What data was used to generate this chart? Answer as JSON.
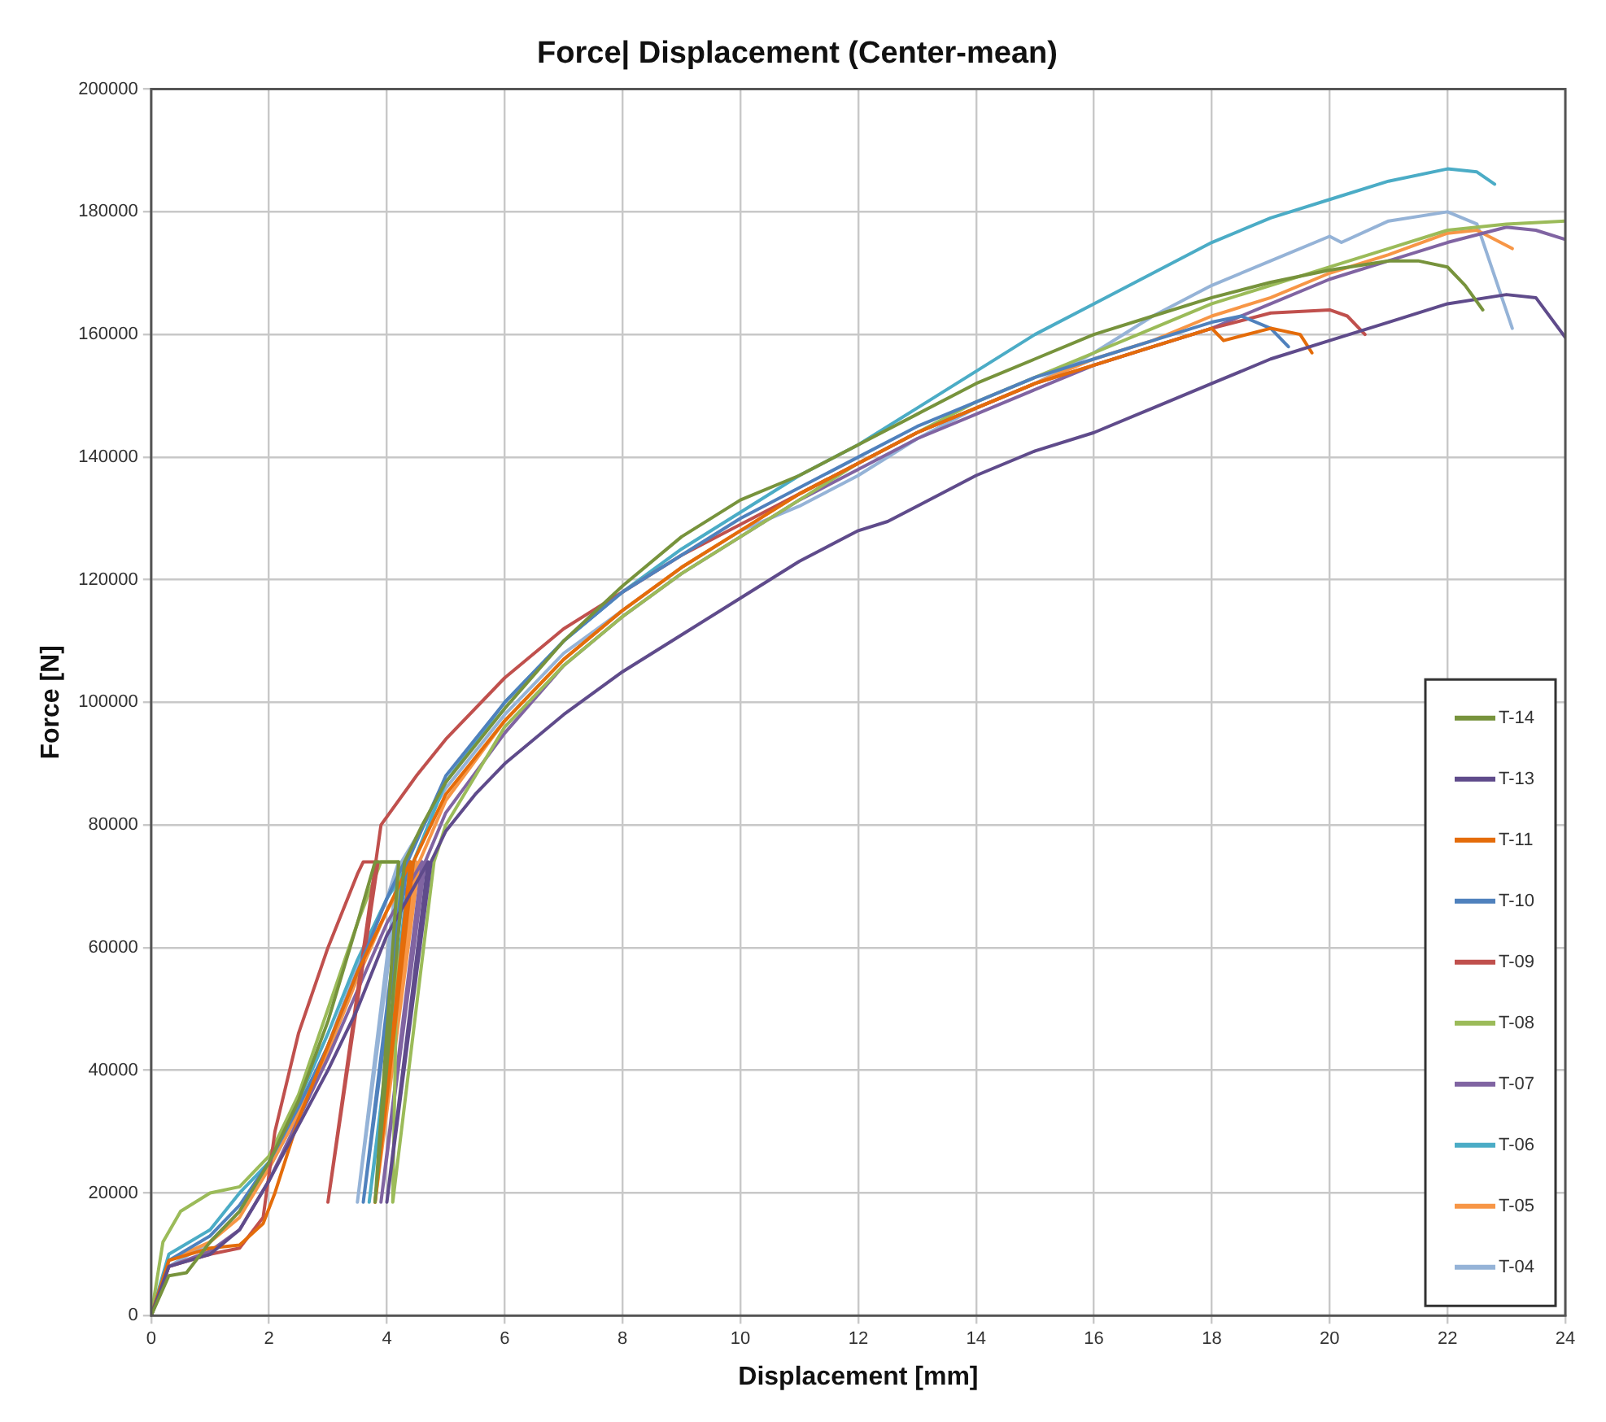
{
  "chart_data": {
    "type": "line",
    "title": "Force| Displacement (Center-mean)",
    "xlabel": "Displacement [mm]",
    "ylabel": "Force [N]",
    "xlim": [
      0,
      24
    ],
    "xticks": [
      0,
      2,
      4,
      6,
      8,
      10,
      12,
      14,
      16,
      18,
      20,
      22,
      24
    ],
    "ylim": [
      0,
      200000
    ],
    "yticks": [
      0,
      20000,
      40000,
      60000,
      80000,
      100000,
      120000,
      140000,
      160000,
      180000,
      200000
    ],
    "grid": true,
    "legend": "bottom right",
    "marker": "none",
    "line_style": "solid",
    "series": [
      {
        "name": "T-14",
        "color": "#77933c",
        "x": [
          0,
          0.3,
          0.6,
          1,
          1.5,
          2,
          2.5,
          3,
          3.5,
          3.8,
          4.2,
          3.8,
          4.3,
          4.6,
          5,
          6,
          7,
          8,
          9,
          10,
          11,
          12,
          13,
          14,
          15,
          16,
          17,
          18,
          19,
          20,
          21,
          21.5,
          22,
          22.3,
          22.6
        ],
        "values": [
          0,
          6500,
          7000,
          12000,
          17000,
          25000,
          35000,
          48000,
          64000,
          74000,
          74000,
          18500,
          74000,
          80000,
          87000,
          99000,
          110000,
          119000,
          127000,
          133000,
          137000,
          142000,
          147000,
          152000,
          156000,
          160000,
          163000,
          166000,
          168500,
          170500,
          172000,
          172000,
          171000,
          168000,
          164000
        ]
      },
      {
        "name": "T-13",
        "color": "#5f4b8b",
        "x": [
          0,
          0.3,
          1,
          1.5,
          2,
          2.5,
          3,
          3.5,
          4,
          4.7,
          4.0,
          4.75,
          5,
          5.5,
          6,
          7,
          8,
          9,
          10,
          11,
          12,
          12.5,
          13,
          14,
          15,
          16,
          17,
          18,
          19,
          20,
          21,
          22,
          23,
          23.5,
          24
        ],
        "values": [
          0,
          8000,
          10000,
          14000,
          22000,
          31000,
          40000,
          50000,
          62000,
          74000,
          18500,
          74000,
          79000,
          85000,
          90000,
          98000,
          105000,
          111000,
          117000,
          123000,
          128000,
          129500,
          132000,
          137000,
          141000,
          144000,
          148000,
          152000,
          156000,
          159000,
          162000,
          165000,
          166500,
          166000,
          159500
        ]
      },
      {
        "name": "T-11",
        "color": "#e46c0a",
        "x": [
          0,
          0.3,
          1,
          1.5,
          1.9,
          2.1,
          2.5,
          3,
          3.5,
          4,
          4.4,
          3.8,
          4.45,
          5,
          6,
          7,
          8,
          9,
          10,
          11,
          12,
          13,
          14,
          15,
          16,
          17,
          18,
          18.2,
          19,
          19.5,
          19.7
        ],
        "values": [
          0,
          9000,
          11000,
          11500,
          15000,
          20000,
          32000,
          44000,
          56000,
          66000,
          74000,
          18500,
          74000,
          85000,
          97000,
          107000,
          115000,
          122000,
          128000,
          134000,
          139000,
          144000,
          148000,
          152000,
          155000,
          158000,
          161000,
          159000,
          161000,
          160000,
          157000
        ]
      },
      {
        "name": "T-10",
        "color": "#4f81bd",
        "x": [
          0,
          0.3,
          1,
          1.5,
          2,
          2.5,
          3,
          3.5,
          4,
          4.3,
          3.6,
          4.35,
          5,
          6,
          7,
          8,
          9,
          10,
          11,
          12,
          13,
          14,
          15,
          16,
          17,
          18,
          18.5,
          19,
          19.3
        ],
        "values": [
          0,
          9000,
          13000,
          18000,
          25000,
          34000,
          44000,
          56000,
          68000,
          74000,
          18500,
          74000,
          88000,
          100000,
          110000,
          118000,
          124000,
          130000,
          135000,
          140000,
          145000,
          149000,
          153000,
          156000,
          159000,
          162000,
          163000,
          161000,
          158000
        ]
      },
      {
        "name": "T-09",
        "color": "#c0504d",
        "x": [
          0,
          0.3,
          1,
          1.5,
          1.9,
          2.1,
          2.5,
          3,
          3.5,
          3.6,
          3.85,
          3.0,
          3.9,
          4.5,
          5,
          6,
          7,
          8,
          9,
          10,
          11,
          12,
          13,
          14,
          15,
          16,
          17,
          18,
          19,
          20,
          20.3,
          20.6
        ],
        "values": [
          0,
          8000,
          10000,
          11000,
          16000,
          30000,
          46000,
          60000,
          72000,
          74000,
          74000,
          18500,
          80000,
          88000,
          94000,
          104000,
          112000,
          118000,
          124000,
          129000,
          134000,
          139000,
          144000,
          148000,
          152000,
          155000,
          158000,
          161000,
          163500,
          164000,
          163000,
          160000
        ]
      },
      {
        "name": "T-08",
        "color": "#9bbb59",
        "x": [
          0,
          0.2,
          0.5,
          1,
          1.5,
          2,
          2.5,
          3,
          3.5,
          3.9,
          4.2,
          4.1,
          4.8,
          5,
          6,
          7,
          8,
          9,
          10,
          11,
          12,
          13,
          14,
          15,
          16,
          17,
          18,
          19,
          20,
          21,
          22,
          23,
          24
        ],
        "values": [
          0,
          12000,
          17000,
          20000,
          21000,
          26000,
          36000,
          50000,
          64000,
          74000,
          74000,
          18500,
          74000,
          80000,
          96000,
          106000,
          114000,
          121000,
          127000,
          133000,
          139000,
          144000,
          149000,
          153000,
          157000,
          161000,
          165000,
          168000,
          171000,
          174000,
          177000,
          178000,
          178500
        ]
      },
      {
        "name": "T-07",
        "color": "#8064a2",
        "x": [
          0,
          0.3,
          1,
          1.5,
          2,
          2.5,
          3,
          3.5,
          4,
          4.6,
          3.9,
          4.65,
          5,
          6,
          7,
          8,
          9,
          10,
          11,
          12,
          13,
          14,
          15,
          16,
          17,
          18,
          19,
          20,
          21,
          22,
          23,
          23.5,
          24
        ],
        "values": [
          0,
          8000,
          10500,
          14000,
          22000,
          32000,
          42000,
          53000,
          64000,
          74000,
          18500,
          74000,
          82000,
          95000,
          106000,
          114000,
          121000,
          127000,
          133000,
          138000,
          143000,
          147000,
          151000,
          155000,
          158000,
          161000,
          165000,
          169000,
          172000,
          175000,
          177500,
          177000,
          175500
        ]
      },
      {
        "name": "T-06",
        "color": "#4bacc6",
        "x": [
          0,
          0.3,
          1,
          1.5,
          2,
          2.5,
          3,
          3.5,
          4,
          4.4,
          3.7,
          4.45,
          5,
          6,
          7,
          8,
          9,
          10,
          11,
          12,
          13,
          14,
          15,
          16,
          17,
          18,
          19,
          20,
          21,
          22,
          22.5,
          22.8
        ],
        "values": [
          0,
          10000,
          14000,
          20000,
          25000,
          35000,
          46000,
          58000,
          68000,
          74000,
          18500,
          74000,
          87000,
          100000,
          110000,
          118000,
          125000,
          131000,
          137000,
          142000,
          148000,
          154000,
          160000,
          165000,
          170000,
          175000,
          179000,
          182000,
          185000,
          187000,
          186500,
          184500
        ]
      },
      {
        "name": "T-05",
        "color": "#f79646",
        "x": [
          0,
          0.3,
          1,
          1.5,
          2,
          2.5,
          3,
          3.5,
          4,
          4.5,
          3.8,
          4.55,
          5,
          6,
          7,
          8,
          9,
          10,
          11,
          12,
          13,
          14,
          15,
          16,
          17,
          18,
          19,
          20,
          21,
          22,
          22.5,
          23.1
        ],
        "values": [
          0,
          9000,
          12000,
          16000,
          24000,
          33000,
          43000,
          55000,
          66000,
          74000,
          18500,
          74000,
          84000,
          97000,
          107000,
          115000,
          122000,
          128000,
          134000,
          139000,
          144000,
          148000,
          152000,
          156000,
          159000,
          163000,
          166000,
          170000,
          173000,
          176500,
          177000,
          174000
        ]
      },
      {
        "name": "T-04",
        "color": "#95b3d7",
        "x": [
          0,
          0.3,
          1,
          1.5,
          2,
          2.5,
          3,
          3.5,
          4,
          4.2,
          3.5,
          4.25,
          5,
          6,
          7,
          8,
          9,
          10,
          11,
          12,
          13,
          14,
          15,
          16,
          17,
          18,
          19,
          20,
          20.2,
          21,
          22,
          22.5,
          23.1
        ],
        "values": [
          0,
          8000,
          12000,
          17000,
          24000,
          33000,
          44000,
          57000,
          68000,
          74000,
          18500,
          74000,
          86000,
          98000,
          108000,
          115000,
          122000,
          128000,
          132000,
          137000,
          143000,
          148000,
          152000,
          157000,
          163000,
          168000,
          172000,
          176000,
          175000,
          178500,
          180000,
          178000,
          161000
        ]
      }
    ]
  }
}
